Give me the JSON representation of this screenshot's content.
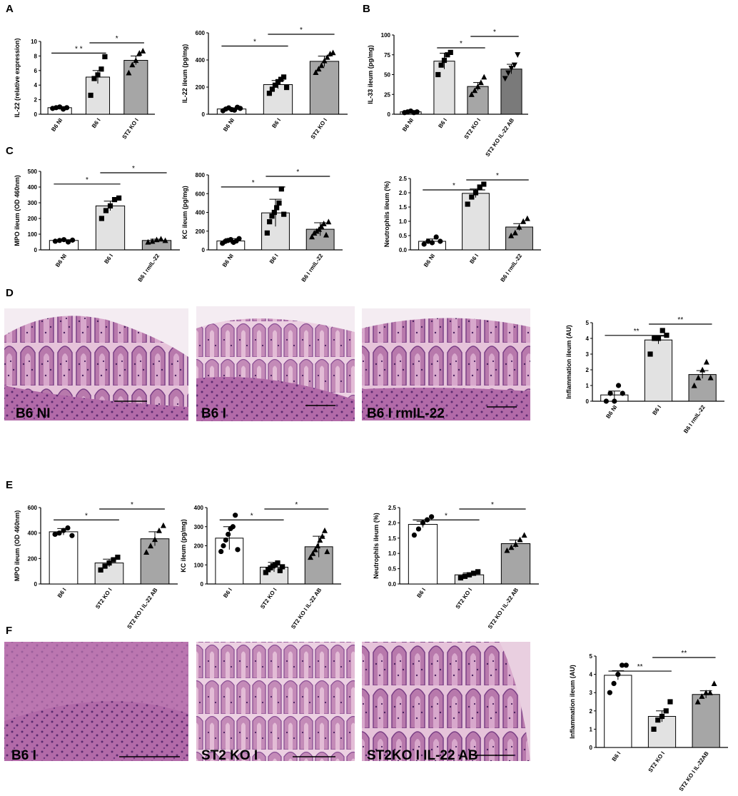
{
  "panel_letters": [
    "A",
    "B",
    "C",
    "D",
    "E",
    "F"
  ],
  "colors": {
    "bar_white": "#ffffff",
    "bar_light": "#e2e2e2",
    "bar_mid": "#a6a6a6",
    "bar_dark": "#7a7a7a",
    "histo_bg": "#e9c8de",
    "histo_tissue": "#a25c9a",
    "histo_dark": "#6e3878"
  },
  "histology": [
    {
      "panel": "D",
      "label": "B6 NI"
    },
    {
      "panel": "D",
      "label": "B6 I"
    },
    {
      "panel": "D",
      "label": "B6 I rmIL-22"
    },
    {
      "panel": "F",
      "label": "B6 I"
    },
    {
      "panel": "F",
      "label": "ST2 KO I"
    },
    {
      "panel": "F",
      "label": "ST2KO I IL-22 AB"
    }
  ],
  "chart_data": [
    {
      "id": "A1",
      "panel": "A",
      "type": "bar",
      "ylabel": "IL-22 (relative expression)",
      "ylim": [
        0,
        10
      ],
      "yticks": [
        "0",
        "2",
        "4",
        "6",
        "8",
        "10"
      ],
      "categories": [
        "B6 NI",
        "B6 I",
        "ST2 KO I"
      ],
      "values": [
        0.9,
        5.1,
        7.4
      ],
      "errors": [
        0.15,
        0.9,
        0.6
      ],
      "points": [
        [
          0.8,
          0.9,
          1.0,
          0.7,
          0.9
        ],
        [
          2.6,
          4.9,
          5.4,
          6.2,
          7.9
        ],
        [
          5.7,
          6.8,
          7.4,
          8.4,
          8.7
        ]
      ],
      "markers": [
        "circle",
        "square",
        "triangle"
      ],
      "significance": [
        {
          "from": 0,
          "to": 1,
          "label": "* *"
        },
        {
          "from": 1,
          "to": 2,
          "label": "*"
        }
      ]
    },
    {
      "id": "A2",
      "panel": "A",
      "type": "bar",
      "ylabel": "IL-22 ileum (pg/mg)",
      "ylim": [
        0,
        700
      ],
      "yticks": [
        "0",
        "200",
        "400",
        "600"
      ],
      "categories": [
        "B6 NI",
        "B6 I",
        "ST2 KO I"
      ],
      "values": [
        45,
        255,
        455
      ],
      "errors": [
        10,
        35,
        45
      ],
      "points": [
        [
          30,
          45,
          55,
          40,
          35,
          60,
          50
        ],
        [
          180,
          215,
          250,
          280,
          300,
          320,
          230
        ],
        [
          360,
          390,
          420,
          460,
          490,
          520,
          530
        ]
      ],
      "markers": [
        "circle",
        "square",
        "triangle"
      ],
      "significance": [
        {
          "from": 0,
          "to": 1,
          "label": "*"
        },
        {
          "from": 1,
          "to": 2,
          "label": "*"
        }
      ]
    },
    {
      "id": "B1",
      "panel": "B",
      "type": "bar",
      "ylabel": "IL-33 ileum (pg/mg)",
      "ylim": [
        0,
        100
      ],
      "yticks": [
        "0",
        "25",
        "50",
        "75",
        "100"
      ],
      "categories": [
        "B6 NI",
        "B6 I",
        "ST2 KO I",
        "ST2 KO  IL-22 AB"
      ],
      "values": [
        3,
        67,
        35,
        57
      ],
      "errors": [
        1,
        10,
        5,
        6
      ],
      "points": [
        [
          2,
          3,
          4,
          2,
          3
        ],
        [
          50,
          62,
          68,
          75,
          78
        ],
        [
          25,
          30,
          35,
          40,
          47
        ],
        [
          45,
          52,
          58,
          62,
          75
        ]
      ],
      "markers": [
        "circle",
        "square",
        "triangle",
        "invtriangle"
      ],
      "significance": [
        {
          "from": 1,
          "to": 2,
          "label": "*"
        },
        {
          "from": 2,
          "to": 3,
          "label": "*"
        }
      ]
    },
    {
      "id": "C1",
      "panel": "C",
      "type": "bar",
      "ylabel": "MPO ileum (OD 460nm)",
      "ylim": [
        0,
        500
      ],
      "yticks": [
        "0",
        "100",
        "200",
        "300",
        "400",
        "500"
      ],
      "categories": [
        "B6 NI",
        "B6 I",
        "B6 I rmIL-22"
      ],
      "values": [
        60,
        280,
        60
      ],
      "errors": [
        5,
        30,
        8
      ],
      "points": [
        [
          55,
          60,
          65,
          50,
          62
        ],
        [
          200,
          250,
          280,
          320,
          330
        ],
        [
          50,
          55,
          65,
          70,
          60
        ]
      ],
      "markers": [
        "circle",
        "square",
        "triangle"
      ],
      "significance": [
        {
          "from": 0,
          "to": 1,
          "label": "*"
        },
        {
          "from": 1,
          "to": 2,
          "label": "*"
        }
      ]
    },
    {
      "id": "C2",
      "panel": "C",
      "type": "bar",
      "ylabel": "KC ileum (pg/mg)",
      "ylim": [
        0,
        800
      ],
      "yticks": [
        "0",
        "200",
        "400",
        "600",
        "800"
      ],
      "categories": [
        "B6 NI",
        "B6 I",
        "B6 I rmIL-22"
      ],
      "values": [
        95,
        395,
        220
      ],
      "errors": [
        25,
        145,
        70
      ],
      "points": [
        [
          70,
          90,
          100,
          110,
          80,
          95,
          120
        ],
        [
          180,
          300,
          360,
          400,
          450,
          500,
          650,
          380
        ],
        [
          140,
          180,
          200,
          220,
          250,
          280,
          160,
          300
        ]
      ],
      "markers": [
        "circle",
        "square",
        "triangle"
      ],
      "significance": [
        {
          "from": 0,
          "to": 1,
          "label": "*"
        },
        {
          "from": 1,
          "to": 2,
          "label": "*"
        }
      ]
    },
    {
      "id": "C3",
      "panel": "C",
      "type": "bar",
      "ylabel": "Neutrophils ileum (%)",
      "ylim": [
        0,
        2.5
      ],
      "yticks": [
        "0.0",
        "0.5",
        "1.0",
        "1.5",
        "2.0",
        "2.5"
      ],
      "categories": [
        "B6 NI",
        "B6 I",
        "B6 I rmIL-22"
      ],
      "values": [
        0.3,
        1.98,
        0.8
      ],
      "errors": [
        0.08,
        0.15,
        0.12
      ],
      "points": [
        [
          0.2,
          0.3,
          0.25,
          0.45,
          0.3
        ],
        [
          1.6,
          1.85,
          2.0,
          2.2,
          2.3
        ],
        [
          0.5,
          0.6,
          0.8,
          1.0,
          1.1
        ]
      ],
      "markers": [
        "circle",
        "square",
        "triangle"
      ],
      "significance": [
        {
          "from": 0,
          "to": 1,
          "label": "*"
        },
        {
          "from": 1,
          "to": 2,
          "label": "*"
        }
      ]
    },
    {
      "id": "D1",
      "panel": "D",
      "type": "bar",
      "ylabel": "Inflammation ileum (AU)",
      "ylim": [
        0,
        5
      ],
      "yticks": [
        "0",
        "1",
        "2",
        "3",
        "4",
        "5"
      ],
      "categories": [
        "B6 NI",
        "B6 I",
        "B6 I rmIL-22"
      ],
      "values": [
        0.4,
        3.9,
        1.7
      ],
      "errors": [
        0.25,
        0.25,
        0.25
      ],
      "points": [
        [
          0,
          0.5,
          0,
          1,
          0.5
        ],
        [
          3,
          4,
          4,
          4.5,
          4.2
        ],
        [
          1,
          1.5,
          2,
          2.5,
          1.5
        ]
      ],
      "markers": [
        "circle",
        "square",
        "triangle"
      ],
      "significance": [
        {
          "from": 0,
          "to": 1,
          "label": "**"
        },
        {
          "from": 1,
          "to": 2,
          "label": "**"
        }
      ]
    },
    {
      "id": "E1",
      "panel": "E",
      "type": "bar",
      "ylabel": "MPO ileum (OD 460nm)",
      "ylim": [
        0,
        600
      ],
      "yticks": [
        "0",
        "200",
        "400",
        "600"
      ],
      "categories": [
        "B6 I",
        "ST2 KO I",
        "ST2 KO I IL-22 AB"
      ],
      "values": [
        410,
        165,
        355
      ],
      "errors": [
        25,
        30,
        55
      ],
      "points": [
        [
          390,
          400,
          420,
          440,
          380
        ],
        [
          110,
          140,
          165,
          190,
          210
        ],
        [
          250,
          300,
          350,
          420,
          460
        ]
      ],
      "markers": [
        "circle",
        "square",
        "triangle"
      ],
      "significance": [
        {
          "from": 0,
          "to": 1,
          "label": "*"
        },
        {
          "from": 1,
          "to": 2,
          "label": "*"
        }
      ]
    },
    {
      "id": "E2",
      "panel": "E",
      "type": "bar",
      "ylabel": "KC ileum (pg/mg)",
      "ylim": [
        0,
        400
      ],
      "yticks": [
        "0",
        "100",
        "200",
        "300",
        "400"
      ],
      "categories": [
        "B6 I",
        "ST2 KO I",
        "ST2 KO I IL-22 AB"
      ],
      "values": [
        240,
        88,
        195
      ],
      "errors": [
        60,
        25,
        55
      ],
      "points": [
        [
          170,
          200,
          230,
          260,
          290,
          300,
          360,
          180
        ],
        [
          60,
          75,
          85,
          95,
          100,
          110,
          70,
          90
        ],
        [
          140,
          160,
          180,
          200,
          230,
          250,
          280,
          170
        ]
      ],
      "markers": [
        "circle",
        "square",
        "triangle"
      ],
      "significance": [
        {
          "from": 0,
          "to": 1,
          "label": "*"
        },
        {
          "from": 1,
          "to": 2,
          "label": "*"
        }
      ]
    },
    {
      "id": "E3",
      "panel": "E",
      "type": "bar",
      "ylabel": "Neutrophils ileum (%)",
      "ylim": [
        0,
        2.5
      ],
      "yticks": [
        "0.0",
        "0.5",
        "1.0",
        "1.5",
        "2.0",
        "2.5"
      ],
      "categories": [
        "B6 I",
        "ST2 KO I",
        "ST2 KO I IL-22 AB"
      ],
      "values": [
        1.95,
        0.3,
        1.32
      ],
      "errors": [
        0.1,
        0.06,
        0.12
      ],
      "points": [
        [
          1.6,
          1.8,
          2.0,
          2.1,
          2.2
        ],
        [
          0.2,
          0.25,
          0.3,
          0.35,
          0.4
        ],
        [
          1.1,
          1.2,
          1.3,
          1.45,
          1.6
        ]
      ],
      "markers": [
        "circle",
        "square",
        "triangle"
      ],
      "significance": [
        {
          "from": 0,
          "to": 1,
          "label": "*"
        },
        {
          "from": 1,
          "to": 2,
          "label": "*"
        }
      ]
    },
    {
      "id": "F1",
      "panel": "F",
      "type": "bar",
      "ylabel": "Inflammation ileum (AU)",
      "ylim": [
        0,
        5
      ],
      "yticks": [
        "0",
        "1",
        "2",
        "3",
        "4",
        "5"
      ],
      "categories": [
        "B6 I",
        "ST2 KO I",
        "ST2 KO I IL-22AB"
      ],
      "values": [
        3.95,
        1.7,
        2.9
      ],
      "errors": [
        0.25,
        0.3,
        0.2
      ],
      "points": [
        [
          3,
          3.5,
          4,
          4.5,
          4.5
        ],
        [
          1,
          1.5,
          1.7,
          2,
          2.5
        ],
        [
          2.5,
          2.8,
          3,
          3,
          3.5
        ]
      ],
      "markers": [
        "circle",
        "square",
        "triangle"
      ],
      "significance": [
        {
          "from": 0,
          "to": 1,
          "label": "**"
        },
        {
          "from": 1,
          "to": 2,
          "label": "**"
        }
      ]
    }
  ]
}
